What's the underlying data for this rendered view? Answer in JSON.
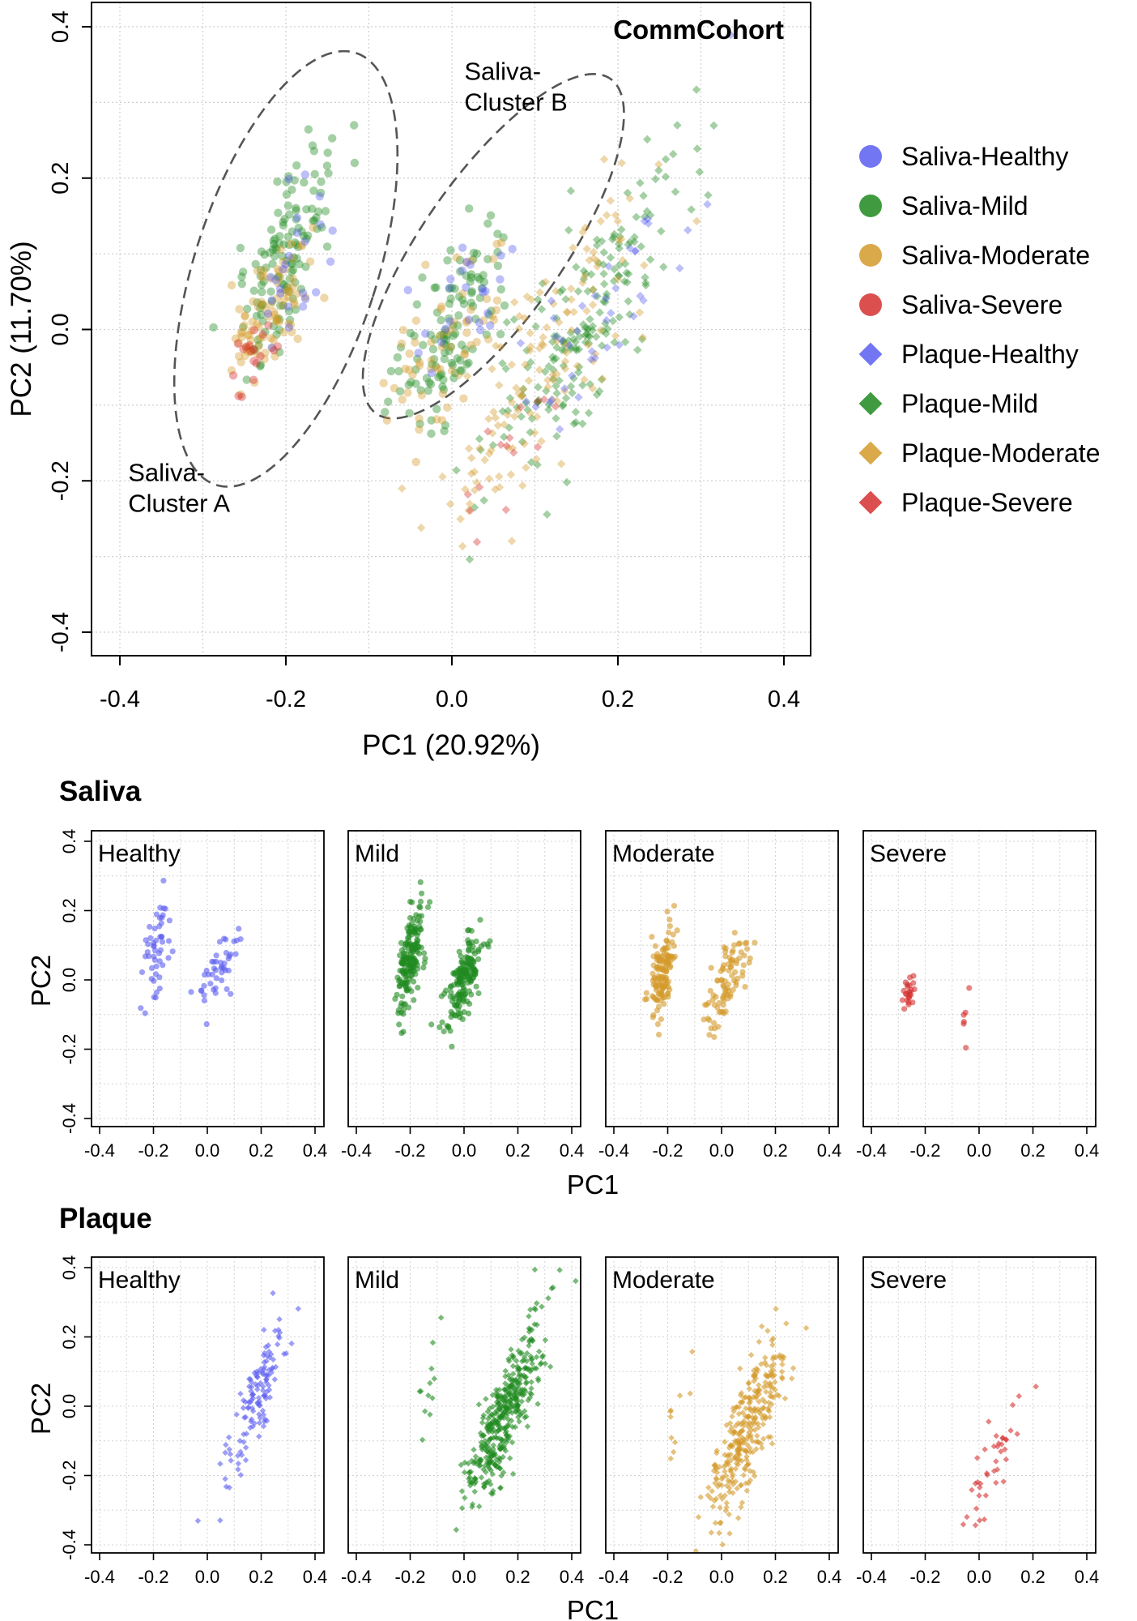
{
  "colors": {
    "healthy": "#5b5ef0",
    "mild": "#1f8a1f",
    "moderate": "#d49a2a",
    "severe": "#d63030"
  },
  "chart_data": [
    {
      "id": "main",
      "type": "scatter",
      "title": "CommCohort",
      "xlabel": "PC1 (20.92%)",
      "ylabel": "PC2 (11.70%)",
      "xlim": [
        -0.4,
        0.4
      ],
      "ylim": [
        -0.4,
        0.4
      ],
      "xticks": [
        "-0.4",
        "-0.2",
        "0.0",
        "0.2",
        "0.4"
      ],
      "yticks": [
        "-0.4",
        "-0.2",
        "0.0",
        "0.2",
        "0.4"
      ],
      "grid": true,
      "legend_position": "right",
      "legend": [
        {
          "label": "Saliva-Healthy",
          "shape": "circle",
          "color_key": "healthy"
        },
        {
          "label": "Saliva-Mild",
          "shape": "circle",
          "color_key": "mild"
        },
        {
          "label": "Saliva-Moderate",
          "shape": "circle",
          "color_key": "moderate"
        },
        {
          "label": "Saliva-Severe",
          "shape": "circle",
          "color_key": "severe"
        },
        {
          "label": "Plaque-Healthy",
          "shape": "diamond",
          "color_key": "healthy"
        },
        {
          "label": "Plaque-Mild",
          "shape": "diamond",
          "color_key": "mild"
        },
        {
          "label": "Plaque-Moderate",
          "shape": "diamond",
          "color_key": "moderate"
        },
        {
          "label": "Plaque-Severe",
          "shape": "diamond",
          "color_key": "severe"
        }
      ],
      "annotations": [
        {
          "label": "Saliva-Cluster A",
          "lines": [
            "Saliva-",
            "Cluster A"
          ],
          "x": -0.39,
          "y": -0.2,
          "ellipse": {
            "cx": -0.2,
            "cy": 0.08,
            "rx": 0.11,
            "ry": 0.3,
            "angle": 18
          }
        },
        {
          "label": "Saliva-Cluster B",
          "lines": [
            "Saliva-",
            "Cluster B"
          ],
          "x": 0.015,
          "y": 0.33,
          "ellipse": {
            "cx": 0.05,
            "cy": 0.11,
            "rx": 0.085,
            "ry": 0.27,
            "angle": 35
          }
        }
      ],
      "clusters": [
        {
          "group": "saliva",
          "level": "mild",
          "cx": -0.2,
          "cy": 0.1,
          "sx": 0.025,
          "sy": 0.07,
          "rho": 0.65,
          "n": 130
        },
        {
          "group": "saliva",
          "level": "moderate",
          "cx": -0.22,
          "cy": 0.02,
          "sx": 0.025,
          "sy": 0.05,
          "rho": 0.6,
          "n": 90
        },
        {
          "group": "saliva",
          "level": "healthy",
          "cx": -0.19,
          "cy": 0.08,
          "sx": 0.025,
          "sy": 0.08,
          "rho": 0.6,
          "n": 25
        },
        {
          "group": "saliva",
          "level": "severe",
          "cx": -0.24,
          "cy": -0.04,
          "sx": 0.015,
          "sy": 0.03,
          "rho": 0.4,
          "n": 18
        },
        {
          "group": "saliva",
          "level": "mild",
          "cx": 0.0,
          "cy": 0.0,
          "sx": 0.035,
          "sy": 0.07,
          "rho": 0.7,
          "n": 120
        },
        {
          "group": "saliva",
          "level": "moderate",
          "cx": -0.01,
          "cy": -0.02,
          "sx": 0.035,
          "sy": 0.06,
          "rho": 0.6,
          "n": 60
        },
        {
          "group": "saliva",
          "level": "healthy",
          "cx": 0.02,
          "cy": 0.05,
          "sx": 0.035,
          "sy": 0.06,
          "rho": 0.6,
          "n": 25
        },
        {
          "group": "plaque",
          "level": "mild",
          "cx": 0.17,
          "cy": 0.02,
          "sx": 0.065,
          "sy": 0.12,
          "rho": 0.85,
          "n": 200
        },
        {
          "group": "plaque",
          "level": "moderate",
          "cx": 0.1,
          "cy": -0.06,
          "sx": 0.07,
          "sy": 0.12,
          "rho": 0.82,
          "n": 140
        },
        {
          "group": "plaque",
          "level": "healthy",
          "cx": 0.18,
          "cy": 0.03,
          "sx": 0.06,
          "sy": 0.11,
          "rho": 0.8,
          "n": 40
        },
        {
          "group": "plaque",
          "level": "severe",
          "cx": 0.06,
          "cy": -0.18,
          "sx": 0.05,
          "sy": 0.07,
          "rho": 0.7,
          "n": 15
        }
      ]
    },
    {
      "id": "saliva",
      "type": "scatter",
      "title": "Saliva",
      "xlabel": "PC1",
      "ylabel": "PC2",
      "xlim": [
        -0.4,
        0.4
      ],
      "ylim": [
        -0.4,
        0.4
      ],
      "xticks": [
        "-0.4",
        "-0.2",
        "0.0",
        "0.2",
        "0.4"
      ],
      "yticks": [
        "-0.4",
        "-0.2",
        "0.0",
        "0.2",
        "0.4"
      ],
      "grid": true,
      "panels": [
        {
          "label": "Healthy",
          "level": "healthy",
          "shape": "circle",
          "clusters": [
            {
              "cx": -0.19,
              "cy": 0.08,
              "sx": 0.03,
              "sy": 0.09,
              "rho": 0.6,
              "n": 50
            },
            {
              "cx": 0.04,
              "cy": 0.02,
              "sx": 0.04,
              "sy": 0.07,
              "rho": 0.6,
              "n": 45
            }
          ]
        },
        {
          "label": "Mild",
          "level": "mild",
          "shape": "circle",
          "clusters": [
            {
              "cx": -0.2,
              "cy": 0.06,
              "sx": 0.025,
              "sy": 0.08,
              "rho": 0.6,
              "n": 180
            },
            {
              "cx": 0.0,
              "cy": 0.0,
              "sx": 0.035,
              "sy": 0.07,
              "rho": 0.7,
              "n": 170
            }
          ]
        },
        {
          "label": "Moderate",
          "level": "moderate",
          "shape": "circle",
          "clusters": [
            {
              "cx": -0.22,
              "cy": 0.01,
              "sx": 0.025,
              "sy": 0.07,
              "rho": 0.6,
              "n": 130
            },
            {
              "cx": 0.02,
              "cy": 0.0,
              "sx": 0.04,
              "sy": 0.07,
              "rho": 0.7,
              "n": 90
            }
          ]
        },
        {
          "label": "Severe",
          "level": "severe",
          "shape": "circle",
          "clusters": [
            {
              "cx": -0.26,
              "cy": -0.03,
              "sx": 0.012,
              "sy": 0.03,
              "rho": 0.3,
              "n": 24
            },
            {
              "cx": -0.05,
              "cy": -0.11,
              "sx": 0.01,
              "sy": 0.04,
              "rho": 0.4,
              "n": 6
            }
          ]
        }
      ]
    },
    {
      "id": "plaque",
      "type": "scatter",
      "title": "Plaque",
      "xlabel": "PC1",
      "ylabel": "PC2",
      "xlim": [
        -0.4,
        0.4
      ],
      "ylim": [
        -0.4,
        0.4
      ],
      "xticks": [
        "-0.4",
        "-0.2",
        "0.0",
        "0.2",
        "0.4"
      ],
      "yticks": [
        "-0.4",
        "-0.2",
        "0.0",
        "0.2",
        "0.4"
      ],
      "grid": true,
      "panels": [
        {
          "label": "Healthy",
          "level": "healthy",
          "shape": "diamond",
          "clusters": [
            {
              "cx": 0.18,
              "cy": 0.02,
              "sx": 0.06,
              "sy": 0.12,
              "rho": 0.82,
              "n": 130
            }
          ]
        },
        {
          "label": "Mild",
          "level": "mild",
          "shape": "diamond",
          "clusters": [
            {
              "cx": 0.15,
              "cy": -0.02,
              "sx": 0.07,
              "sy": 0.13,
              "rho": 0.85,
              "n": 420
            },
            {
              "cx": -0.13,
              "cy": 0.05,
              "sx": 0.03,
              "sy": 0.1,
              "rho": 0.2,
              "n": 12
            }
          ]
        },
        {
          "label": "Moderate",
          "level": "moderate",
          "shape": "diamond",
          "clusters": [
            {
              "cx": 0.09,
              "cy": -0.07,
              "sx": 0.07,
              "sy": 0.13,
              "rho": 0.8,
              "n": 320
            },
            {
              "cx": -0.16,
              "cy": -0.03,
              "sx": 0.03,
              "sy": 0.1,
              "rho": 0.2,
              "n": 10
            }
          ]
        },
        {
          "label": "Severe",
          "level": "severe",
          "shape": "diamond",
          "clusters": [
            {
              "cx": 0.06,
              "cy": -0.15,
              "sx": 0.06,
              "sy": 0.09,
              "rho": 0.8,
              "n": 40
            }
          ]
        }
      ]
    }
  ]
}
